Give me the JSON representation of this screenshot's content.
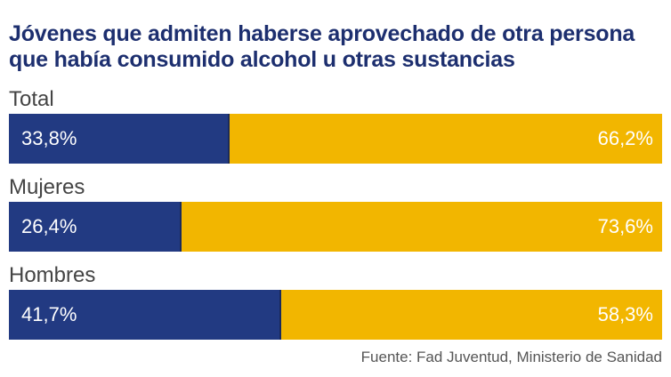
{
  "title_lines": [
    "Jóvenes que admiten haberse aprovechado de otra persona",
    "que había consumido alcohol u otras sustancias"
  ],
  "source": "Fuente: Fad Juventud, Ministerio de Sanidad",
  "colors": {
    "series_a": "#223a82",
    "series_b": "#f2b600"
  },
  "chart_data": {
    "type": "bar",
    "orientation": "horizontal",
    "stacked": "100%",
    "categories": [
      "Total",
      "Mujeres",
      "Hombres"
    ],
    "series": [
      {
        "values": [
          33.8,
          26.4,
          41.7
        ],
        "labels": [
          "33,8%",
          "26,4%",
          "41,7%"
        ],
        "color": "#223a82"
      },
      {
        "values": [
          66.2,
          73.6,
          58.3
        ],
        "labels": [
          "66,2%",
          "73,6%",
          "58,3%"
        ],
        "color": "#f2b600"
      }
    ],
    "xlim": [
      0,
      100
    ]
  }
}
